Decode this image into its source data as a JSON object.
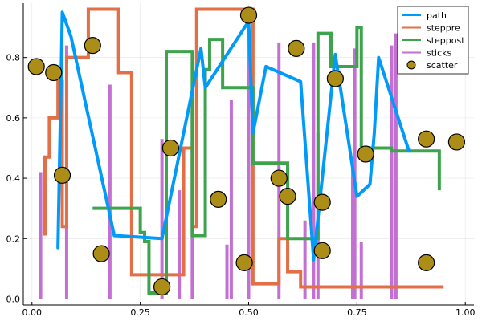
{
  "chart_data": {
    "type": "mixed",
    "title": "",
    "xlabel": "",
    "ylabel": "",
    "xlim": [
      -0.02,
      1.02
    ],
    "ylim": [
      -0.02,
      0.98
    ],
    "xticks": [
      0.0,
      0.25,
      0.5,
      0.75,
      1.0
    ],
    "xtick_labels": [
      "0.00",
      "0.25",
      "0.50",
      "0.75",
      "1.00"
    ],
    "yticks": [
      0.0,
      0.2,
      0.4,
      0.6,
      0.8
    ],
    "ytick_labels": [
      "0.0",
      "0.2",
      "0.4",
      "0.6",
      "0.8"
    ],
    "grid": true,
    "legend_position": "top-right",
    "series": [
      {
        "name": "path",
        "kind": "line",
        "color": "#009AF9",
        "x": [
          0.06,
          0.07,
          0.09,
          0.19,
          0.3,
          0.39,
          0.4,
          0.5,
          0.51,
          0.54,
          0.62,
          0.65,
          0.7,
          0.75,
          0.78,
          0.79,
          0.8,
          0.87
        ],
        "y": [
          0.17,
          0.95,
          0.87,
          0.21,
          0.2,
          0.83,
          0.7,
          0.92,
          0.55,
          0.77,
          0.72,
          0.13,
          0.81,
          0.34,
          0.38,
          0.55,
          0.8,
          0.49
        ]
      },
      {
        "name": "steppre",
        "kind": "step-pre",
        "color": "#E26F46",
        "x": [
          0.03,
          0.04,
          0.06,
          0.07,
          0.08,
          0.13,
          0.2,
          0.23,
          0.35,
          0.37,
          0.38,
          0.51,
          0.57,
          0.59,
          0.62,
          0.67,
          0.75,
          0.95
        ],
        "y": [
          0.21,
          0.47,
          0.6,
          0.72,
          0.24,
          0.8,
          0.96,
          0.75,
          0.08,
          0.5,
          0.24,
          0.96,
          0.05,
          0.2,
          0.09,
          0.04,
          0.04,
          0.04
        ]
      },
      {
        "name": "steppost",
        "kind": "step-post",
        "color": "#3DA44D",
        "x": [
          0.14,
          0.25,
          0.26,
          0.27,
          0.31,
          0.37,
          0.4,
          0.41,
          0.44,
          0.51,
          0.59,
          0.66,
          0.69,
          0.75,
          0.76,
          0.83,
          0.94
        ],
        "y": [
          0.3,
          0.22,
          0.19,
          0.02,
          0.82,
          0.21,
          0.76,
          0.86,
          0.7,
          0.45,
          0.2,
          0.88,
          0.77,
          0.9,
          0.5,
          0.49,
          0.36
        ]
      },
      {
        "name": "sticks",
        "kind": "sticks",
        "color": "#C271D2",
        "x": [
          0.02,
          0.08,
          0.18,
          0.3,
          0.34,
          0.37,
          0.45,
          0.46,
          0.5,
          0.57,
          0.63,
          0.65,
          0.66,
          0.74,
          0.745,
          0.76,
          0.83,
          0.84
        ],
        "y": [
          0.42,
          0.84,
          0.71,
          0.53,
          0.36,
          0.68,
          0.18,
          0.66,
          0.95,
          0.85,
          0.26,
          0.85,
          0.55,
          0.46,
          0.83,
          0.19,
          0.84,
          0.88
        ]
      },
      {
        "name": "scatter",
        "kind": "scatter",
        "color": "#AC8D18",
        "x": [
          0.01,
          0.05,
          0.07,
          0.14,
          0.16,
          0.3,
          0.32,
          0.43,
          0.49,
          0.5,
          0.57,
          0.59,
          0.61,
          0.67,
          0.67,
          0.7,
          0.77,
          0.91,
          0.91,
          0.98
        ],
        "y": [
          0.77,
          0.75,
          0.41,
          0.84,
          0.15,
          0.04,
          0.5,
          0.33,
          0.12,
          0.94,
          0.4,
          0.34,
          0.83,
          0.32,
          0.16,
          0.73,
          0.48,
          0.53,
          0.12,
          0.52
        ]
      }
    ]
  }
}
